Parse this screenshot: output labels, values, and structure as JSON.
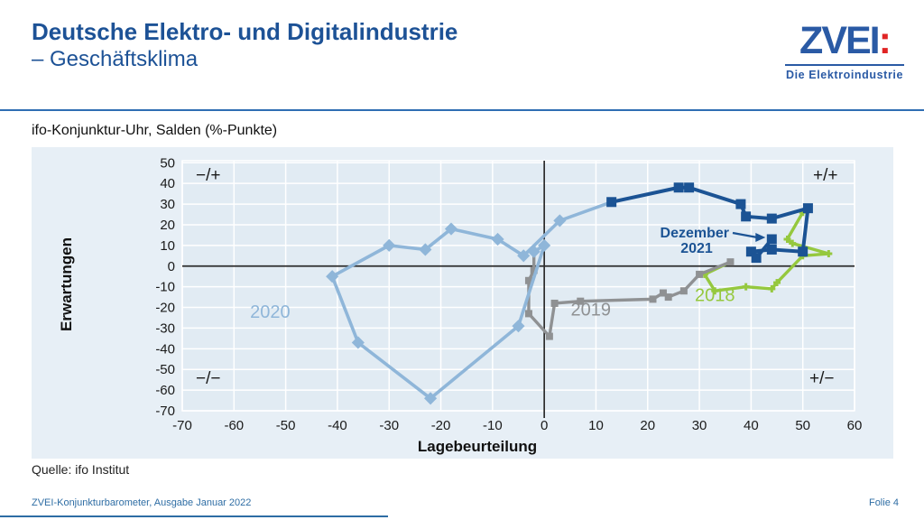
{
  "header": {
    "title_line1": "Deutsche Elektro- und Digitalindustrie",
    "title_line2": "– Geschäftsklima"
  },
  "logo": {
    "brand": "ZVEI",
    "colon": ":",
    "tagline": "Die Elektroindustrie",
    "brand_color": "#2a5aa5",
    "colon_color": "#e02424"
  },
  "chart_heading": "ifo-Konjunktur-Uhr, Salden (%-Punkte)",
  "footer": {
    "source": "Quelle: ifo Institut",
    "doc": "ZVEI-Konjunkturbarometer, Ausgabe Januar 2022",
    "page": "Folie 4"
  },
  "chart_data": {
    "type": "scatter",
    "title": "ifo-Konjunktur-Uhr, Salden (%-Punkte)",
    "xlabel": "Lagebeurteilung",
    "ylabel": "Erwartungen",
    "xlim": [
      -70,
      60
    ],
    "ylim": [
      -70,
      51
    ],
    "x_ticks": [
      -70,
      -60,
      -50,
      -40,
      -30,
      -20,
      -10,
      0,
      10,
      20,
      30,
      40,
      50,
      60
    ],
    "y_ticks": [
      50,
      40,
      30,
      20,
      10,
      0,
      -10,
      -20,
      -30,
      -40,
      -50,
      -60,
      -70
    ],
    "grid": true,
    "background": "#e1ebf3",
    "gridline_color": "#ffffff",
    "zero_line_color": "#2d2d2d",
    "quadrant_labels": {
      "top_left": "−/+",
      "top_right": "+/+",
      "bottom_left": "−/−",
      "bottom_right": "+/−"
    },
    "annotation": {
      "line1": "Dezember",
      "line2": "2021",
      "color": "#1b5394",
      "points_to": [
        44,
        13
      ]
    },
    "series": [
      {
        "name": "2018",
        "color": "#95c83e",
        "marker": "plus",
        "label_pos": [
          33,
          -17
        ],
        "points": [
          [
            50,
            26
          ],
          [
            47,
            13
          ],
          [
            48,
            11
          ],
          [
            55,
            6
          ],
          [
            50,
            5
          ],
          [
            45,
            -8
          ],
          [
            44,
            -11
          ],
          [
            39,
            -10
          ],
          [
            33,
            -12
          ],
          [
            31,
            -4
          ]
        ]
      },
      {
        "name": "2019",
        "color": "#8f9193",
        "marker": "square",
        "label_pos": [
          9,
          -24
        ],
        "points": [
          [
            36,
            2
          ],
          [
            30,
            -4
          ],
          [
            27,
            -12
          ],
          [
            24,
            -15
          ],
          [
            23,
            -13
          ],
          [
            21,
            -16
          ],
          [
            7,
            -17
          ],
          [
            2,
            -18
          ],
          [
            1,
            -34
          ],
          [
            -3,
            -23
          ],
          [
            -3,
            -7
          ],
          [
            -2,
            -2
          ]
        ]
      },
      {
        "name": "2020",
        "color": "#8fb6d9",
        "marker": "diamond",
        "label_pos": [
          -53,
          -25
        ],
        "points": [
          [
            -2,
            7
          ],
          [
            0,
            10
          ],
          [
            -5,
            -29
          ],
          [
            -22,
            -64
          ],
          [
            -36,
            -37
          ],
          [
            -41,
            -5
          ],
          [
            -30,
            10
          ],
          [
            -23,
            8
          ],
          [
            -18,
            18
          ],
          [
            -9,
            13
          ],
          [
            -4,
            5
          ],
          [
            3,
            22
          ]
        ]
      },
      {
        "name": "2021",
        "color": "#1b5394",
        "marker": "square",
        "label_pos": null,
        "points": [
          [
            13,
            31
          ],
          [
            26,
            38
          ],
          [
            28,
            38
          ],
          [
            38,
            30
          ],
          [
            39,
            24
          ],
          [
            44,
            23
          ],
          [
            51,
            28
          ],
          [
            50,
            7
          ],
          [
            44,
            8
          ],
          [
            40,
            7
          ],
          [
            41,
            4
          ],
          [
            44,
            13
          ]
        ]
      }
    ]
  }
}
